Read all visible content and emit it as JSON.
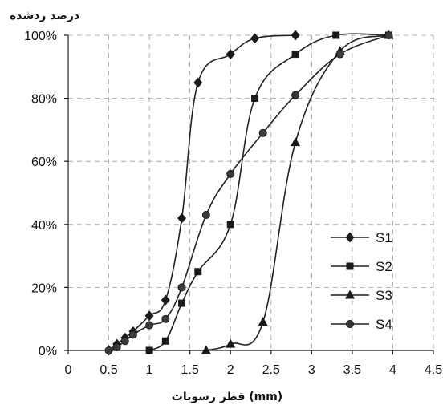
{
  "chart_data": {
    "type": "line",
    "ylabel": "درصد ردشده",
    "xlabel": "قطر رسوبات (mm)",
    "xlim": [
      0,
      4.5
    ],
    "ylim": [
      0,
      100
    ],
    "x_ticks": [
      "0",
      "0.5",
      "1",
      "1.5",
      "2",
      "2.5",
      "3",
      "3.5",
      "4",
      "4.5"
    ],
    "y_ticks": [
      "0%",
      "20%",
      "40%",
      "60%",
      "80%",
      "100%"
    ],
    "grid": true,
    "legend_position": "right-lower",
    "series": [
      {
        "name": "S1",
        "marker": "diamond",
        "x": [
          0.5,
          0.6,
          0.7,
          0.8,
          1.0,
          1.2,
          1.4,
          1.6,
          2.0,
          2.3,
          2.8
        ],
        "y": [
          0,
          2,
          4,
          6,
          11,
          16,
          42,
          85,
          94,
          99,
          100
        ]
      },
      {
        "name": "S2",
        "marker": "square",
        "x": [
          1.0,
          1.2,
          1.4,
          1.6,
          2.0,
          2.3,
          2.8,
          3.3,
          3.95
        ],
        "y": [
          0,
          3,
          15,
          25,
          40,
          80,
          94,
          100,
          100
        ]
      },
      {
        "name": "S3",
        "marker": "triangle",
        "x": [
          1.7,
          2.0,
          2.4,
          2.8,
          3.35,
          3.95
        ],
        "y": [
          0,
          2,
          9,
          66,
          95,
          100
        ]
      },
      {
        "name": "S4",
        "marker": "circle",
        "x": [
          0.5,
          0.6,
          0.7,
          0.8,
          1.0,
          1.2,
          1.4,
          1.7,
          2.0,
          2.4,
          2.8,
          3.35,
          3.95
        ],
        "y": [
          0,
          1,
          3,
          5,
          8,
          10,
          20,
          43,
          56,
          69,
          81,
          94,
          100
        ]
      }
    ]
  }
}
